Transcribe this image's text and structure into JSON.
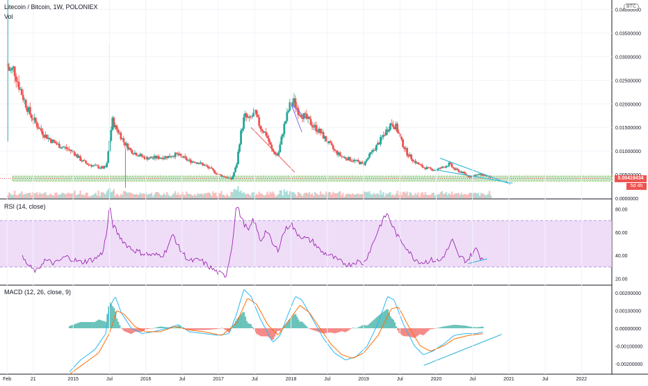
{
  "header": {
    "title": "Litecoin / Bitcoin, 1W, POLONIEX",
    "volume_label": "Vol",
    "currency_badge": "BTC"
  },
  "price_tags": {
    "last_price": "0.00419434",
    "countdown": "5d 4h"
  },
  "panes": {
    "rsi_label": "RSI (14, close)",
    "macd_label": "MACD (12, 26, close, 9)"
  },
  "colors": {
    "up": "#26a69a",
    "down": "#ef5350",
    "rsi_line": "#9c27b0",
    "rsi_band": "#e9d2f5",
    "macd_line": "#29b6f6",
    "signal_line": "#ff6d00",
    "trendline": "#40bcd8",
    "support_zone": "#a5d6a7"
  },
  "chart_data": [
    {
      "type": "candlestick",
      "title": "Litecoin / Bitcoin, 1W, POLONIEX",
      "y_axis": {
        "ticks": [
          "0.0000000",
          "0.00500000",
          "0.01000000",
          "0.01500000",
          "0.02000000",
          "0.02500000",
          "0.03000000",
          "0.03500000",
          "0.04000000"
        ],
        "ylim": [
          0,
          0.042
        ]
      },
      "x_axis": {
        "ticks": [
          "Feb",
          "21",
          "2015",
          "Jul",
          "2016",
          "Jul",
          "2017",
          "Jul",
          "2018",
          "Jul",
          "2019",
          "Jul",
          "2020",
          "Jul",
          "2021",
          "Jul",
          "2022"
        ]
      },
      "weekly_close_path": [
        [
          2014.08,
          0.0285
        ],
        [
          2014.13,
          0.0268
        ],
        [
          2014.18,
          0.0275
        ],
        [
          2014.25,
          0.024
        ],
        [
          2014.32,
          0.021
        ],
        [
          2014.4,
          0.018
        ],
        [
          2014.5,
          0.0155
        ],
        [
          2014.6,
          0.0135
        ],
        [
          2014.7,
          0.0122
        ],
        [
          2014.8,
          0.0112
        ],
        [
          2014.9,
          0.0106
        ],
        [
          2015.0,
          0.0098
        ],
        [
          2015.1,
          0.0082
        ],
        [
          2015.2,
          0.0072
        ],
        [
          2015.3,
          0.0068
        ],
        [
          2015.4,
          0.0064
        ],
        [
          2015.46,
          0.0066
        ],
        [
          2015.5,
          0.012
        ],
        [
          2015.54,
          0.0165
        ],
        [
          2015.58,
          0.015
        ],
        [
          2015.63,
          0.014
        ],
        [
          2015.7,
          0.0118
        ],
        [
          2015.8,
          0.01
        ],
        [
          2015.9,
          0.0092
        ],
        [
          2016.0,
          0.0085
        ],
        [
          2016.15,
          0.0086
        ],
        [
          2016.3,
          0.0088
        ],
        [
          2016.42,
          0.0093
        ],
        [
          2016.5,
          0.0087
        ],
        [
          2016.6,
          0.0079
        ],
        [
          2016.7,
          0.0077
        ],
        [
          2016.8,
          0.007
        ],
        [
          2016.9,
          0.0061
        ],
        [
          2017.0,
          0.005
        ],
        [
          2017.1,
          0.0045
        ],
        [
          2017.18,
          0.004
        ],
        [
          2017.25,
          0.007
        ],
        [
          2017.3,
          0.013
        ],
        [
          2017.36,
          0.0175
        ],
        [
          2017.42,
          0.0165
        ],
        [
          2017.5,
          0.018
        ],
        [
          2017.58,
          0.015
        ],
        [
          2017.66,
          0.0135
        ],
        [
          2017.74,
          0.01
        ],
        [
          2017.82,
          0.009
        ],
        [
          2017.9,
          0.015
        ],
        [
          2017.98,
          0.0195
        ],
        [
          2018.04,
          0.0205
        ],
        [
          2018.1,
          0.0185
        ],
        [
          2018.2,
          0.017
        ],
        [
          2018.3,
          0.0155
        ],
        [
          2018.4,
          0.014
        ],
        [
          2018.5,
          0.012
        ],
        [
          2018.6,
          0.01
        ],
        [
          2018.7,
          0.0088
        ],
        [
          2018.8,
          0.0083
        ],
        [
          2018.9,
          0.0078
        ],
        [
          2019.0,
          0.0072
        ],
        [
          2019.1,
          0.0095
        ],
        [
          2019.2,
          0.0115
        ],
        [
          2019.3,
          0.014
        ],
        [
          2019.38,
          0.016
        ],
        [
          2019.45,
          0.015
        ],
        [
          2019.52,
          0.012
        ],
        [
          2019.6,
          0.0095
        ],
        [
          2019.7,
          0.0078
        ],
        [
          2019.8,
          0.0067
        ],
        [
          2019.9,
          0.0062
        ],
        [
          2020.0,
          0.006
        ],
        [
          2020.1,
          0.0066
        ],
        [
          2020.18,
          0.0073
        ],
        [
          2020.24,
          0.0062
        ],
        [
          2020.35,
          0.0055
        ],
        [
          2020.45,
          0.0046
        ],
        [
          2020.55,
          0.0049
        ],
        [
          2020.63,
          0.005
        ],
        [
          2020.7,
          0.0047
        ],
        [
          2020.77,
          0.0042
        ]
      ],
      "last_price": 0.00419434
    },
    {
      "type": "line",
      "title": "RSI (14, close)",
      "y_axis": {
        "ticks": [
          "20.00",
          "40.00",
          "60.00",
          "80.00"
        ],
        "ylim": [
          15,
          88
        ]
      },
      "bands": [
        30,
        70
      ],
      "series": [
        {
          "values_path": [
            [
              2014.3,
              38
            ],
            [
              2014.4,
              30
            ],
            [
              2014.5,
              26
            ],
            [
              2014.6,
              36
            ],
            [
              2014.75,
              33
            ],
            [
              2014.9,
              39
            ],
            [
              2015.1,
              34
            ],
            [
              2015.3,
              37
            ],
            [
              2015.4,
              42
            ],
            [
              2015.46,
              58
            ],
            [
              2015.5,
              82
            ],
            [
              2015.55,
              66
            ],
            [
              2015.62,
              58
            ],
            [
              2015.72,
              50
            ],
            [
              2015.82,
              45
            ],
            [
              2015.95,
              42
            ],
            [
              2016.1,
              40
            ],
            [
              2016.25,
              41
            ],
            [
              2016.38,
              58
            ],
            [
              2016.46,
              46
            ],
            [
              2016.6,
              35
            ],
            [
              2016.75,
              36
            ],
            [
              2016.9,
              29
            ],
            [
              2017.0,
              25
            ],
            [
              2017.1,
              22
            ],
            [
              2017.18,
              45
            ],
            [
              2017.25,
              84
            ],
            [
              2017.33,
              70
            ],
            [
              2017.42,
              60
            ],
            [
              2017.48,
              72
            ],
            [
              2017.58,
              52
            ],
            [
              2017.66,
              62
            ],
            [
              2017.76,
              48
            ],
            [
              2017.82,
              45
            ],
            [
              2017.9,
              60
            ],
            [
              2018.0,
              68
            ],
            [
              2018.06,
              60
            ],
            [
              2018.18,
              55
            ],
            [
              2018.3,
              52
            ],
            [
              2018.42,
              43
            ],
            [
              2018.54,
              40
            ],
            [
              2018.66,
              35
            ],
            [
              2018.8,
              32
            ],
            [
              2018.9,
              35
            ],
            [
              2019.0,
              33
            ],
            [
              2019.1,
              46
            ],
            [
              2019.22,
              65
            ],
            [
              2019.32,
              76
            ],
            [
              2019.4,
              65
            ],
            [
              2019.48,
              55
            ],
            [
              2019.58,
              48
            ],
            [
              2019.68,
              38
            ],
            [
              2019.8,
              34
            ],
            [
              2019.95,
              36
            ],
            [
              2020.05,
              35
            ],
            [
              2020.15,
              44
            ],
            [
              2020.22,
              53
            ],
            [
              2020.3,
              40
            ],
            [
              2020.42,
              35
            ],
            [
              2020.5,
              42
            ],
            [
              2020.56,
              46
            ],
            [
              2020.6,
              39
            ],
            [
              2020.66,
              37
            ]
          ]
        }
      ]
    },
    {
      "type": "bar+line",
      "title": "MACD (12, 26, close, 9)",
      "y_axis": {
        "ticks": [
          "-0.00200000",
          "-0.00100000",
          "0.00000000",
          "0.00100000",
          "0.00200000"
        ],
        "ylim": [
          -0.0026,
          0.0024
        ]
      },
      "series": [
        {
          "values_path": [
            [
              2014.9,
              -0.0027
            ],
            [
              2015.1,
              -0.0018
            ],
            [
              2015.3,
              -0.0012
            ],
            [
              2015.45,
              -0.0003
            ],
            [
              2015.5,
              0.0012
            ],
            [
              2015.58,
              0.0018
            ],
            [
              2015.66,
              0.0009
            ],
            [
              2015.8,
              0.0
            ],
            [
              2015.95,
              -0.0003
            ],
            [
              2016.1,
              -0.0002
            ],
            [
              2016.3,
              0.0
            ],
            [
              2016.45,
              0.0002
            ],
            [
              2016.6,
              -0.0002
            ],
            [
              2016.8,
              -0.0003
            ],
            [
              2017.0,
              -0.0004
            ],
            [
              2017.15,
              -0.0003
            ],
            [
              2017.25,
              0.0008
            ],
            [
              2017.35,
              0.0022
            ],
            [
              2017.45,
              0.0018
            ],
            [
              2017.58,
              0.0005
            ],
            [
              2017.75,
              -0.0008
            ],
            [
              2017.85,
              -0.0004
            ],
            [
              2017.98,
              0.001
            ],
            [
              2018.06,
              0.0018
            ],
            [
              2018.15,
              0.0016
            ],
            [
              2018.3,
              0.0005
            ],
            [
              2018.45,
              -0.0006
            ],
            [
              2018.6,
              -0.0014
            ],
            [
              2018.75,
              -0.0018
            ],
            [
              2018.9,
              -0.0016
            ],
            [
              2019.05,
              -0.001
            ],
            [
              2019.2,
              0.0003
            ],
            [
              2019.33,
              0.0018
            ],
            [
              2019.42,
              0.0016
            ],
            [
              2019.55,
              0.0002
            ],
            [
              2019.7,
              -0.001
            ],
            [
              2019.82,
              -0.0015
            ],
            [
              2019.95,
              -0.0013
            ],
            [
              2020.1,
              -0.0009
            ],
            [
              2020.25,
              -0.0004
            ],
            [
              2020.4,
              -0.0003
            ],
            [
              2020.55,
              -0.0003
            ],
            [
              2020.66,
              -0.0002
            ]
          ]
        },
        {
          "values_path": [
            [
              2014.95,
              -0.0026
            ],
            [
              2015.15,
              -0.002
            ],
            [
              2015.35,
              -0.0014
            ],
            [
              2015.5,
              -0.0003
            ],
            [
              2015.6,
              0.001
            ],
            [
              2015.7,
              0.0008
            ],
            [
              2015.85,
              0.0001
            ],
            [
              2016.0,
              -0.0002
            ],
            [
              2016.2,
              -0.0002
            ],
            [
              2016.4,
              0.0001
            ],
            [
              2016.6,
              -0.0001
            ],
            [
              2016.8,
              -0.0002
            ],
            [
              2017.05,
              -0.0004
            ],
            [
              2017.25,
              0.0003
            ],
            [
              2017.4,
              0.0017
            ],
            [
              2017.52,
              0.0014
            ],
            [
              2017.68,
              0.0002
            ],
            [
              2017.82,
              -0.0004
            ],
            [
              2018.0,
              0.0006
            ],
            [
              2018.12,
              0.0013
            ],
            [
              2018.25,
              0.0009
            ],
            [
              2018.4,
              0.0
            ],
            [
              2018.55,
              -0.0009
            ],
            [
              2018.7,
              -0.0015
            ],
            [
              2018.85,
              -0.0017
            ],
            [
              2019.0,
              -0.0014
            ],
            [
              2019.2,
              -0.0004
            ],
            [
              2019.38,
              0.0011
            ],
            [
              2019.48,
              0.0012
            ],
            [
              2019.62,
              0.0001
            ],
            [
              2019.78,
              -0.001
            ],
            [
              2019.92,
              -0.0013
            ],
            [
              2020.1,
              -0.001
            ],
            [
              2020.25,
              -0.0006
            ],
            [
              2020.45,
              -0.0004
            ],
            [
              2020.66,
              -0.0003
            ]
          ]
        }
      ]
    }
  ]
}
